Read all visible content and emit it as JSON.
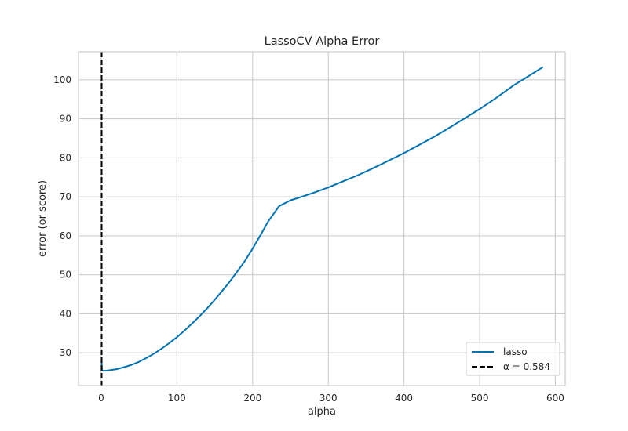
{
  "chart_data": {
    "type": "line",
    "title": "LassoCV Alpha Error",
    "xlabel": "alpha",
    "ylabel": "error (or score)",
    "xlim": [
      -30,
      613
    ],
    "ylim": [
      21.6,
      107.2
    ],
    "xticks": [
      0,
      100,
      200,
      300,
      400,
      500,
      600
    ],
    "yticks": [
      30,
      40,
      50,
      60,
      70,
      80,
      90,
      100
    ],
    "grid": true,
    "legend_position": "lower-right",
    "colors": {
      "line": "#0072b2",
      "vline": "#000000",
      "grid": "#cccccc",
      "spine": "#cccccc"
    },
    "series": [
      {
        "name": "lasso",
        "x": [
          0.584,
          1,
          2,
          5,
          10,
          20,
          30,
          40,
          50,
          60,
          70,
          80,
          90,
          100,
          110,
          120,
          130,
          140,
          150,
          160,
          170,
          180,
          190,
          200,
          210,
          220,
          235,
          250,
          260,
          280,
          300,
          320,
          340,
          360,
          380,
          400,
          420,
          440,
          460,
          480,
          500,
          520,
          545,
          565,
          583
        ],
        "y": [
          27.5,
          25.6,
          25.4,
          25.4,
          25.5,
          25.8,
          26.3,
          26.9,
          27.7,
          28.7,
          29.8,
          31.1,
          32.5,
          34.0,
          35.7,
          37.5,
          39.4,
          41.4,
          43.6,
          45.9,
          48.3,
          50.9,
          53.6,
          56.7,
          60.0,
          63.5,
          67.6,
          69.1,
          69.7,
          71.0,
          72.4,
          74.0,
          75.6,
          77.4,
          79.3,
          81.2,
          83.3,
          85.4,
          87.7,
          90.1,
          92.5,
          95.1,
          98.6,
          101.0,
          103.2
        ]
      }
    ],
    "vline": {
      "x": 0.584,
      "label": "α = 0.584",
      "style": "dashed"
    }
  }
}
